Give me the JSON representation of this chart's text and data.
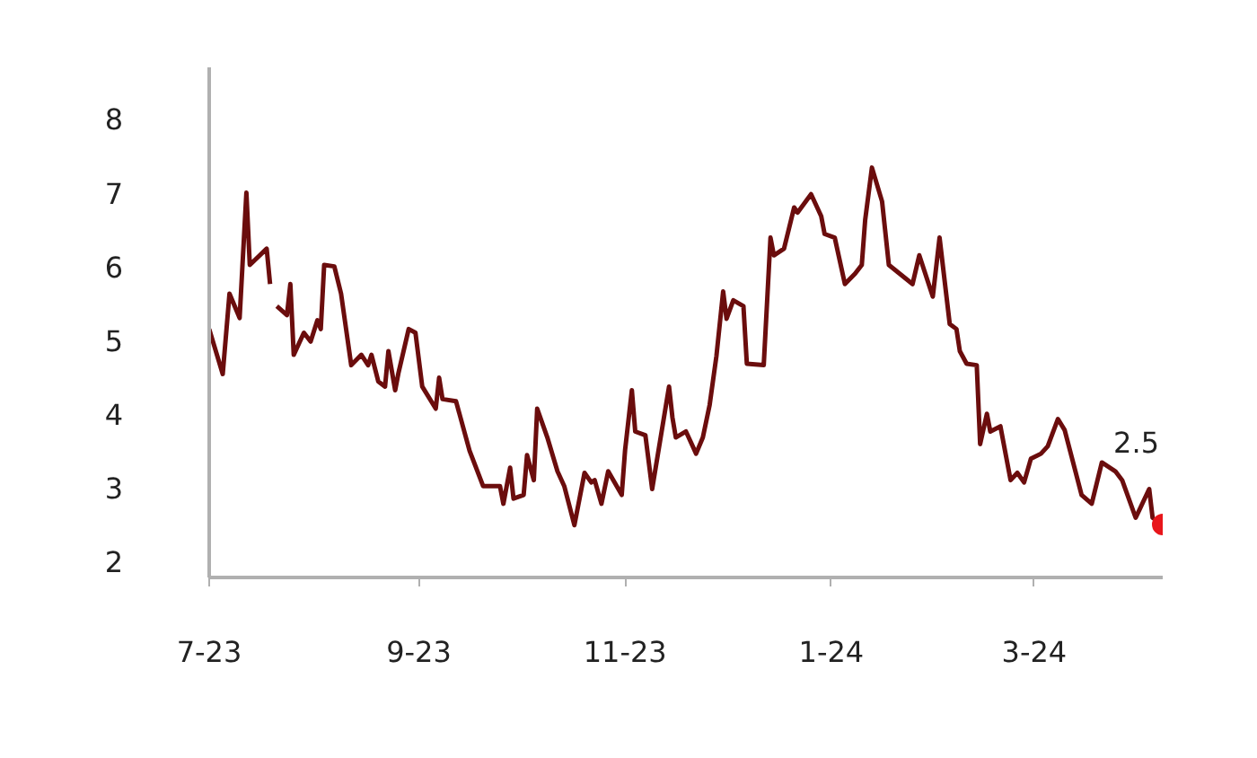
{
  "chart_data": {
    "type": "line",
    "xlim": [
      "2023-07-01",
      "2024-04-08"
    ],
    "ylim": [
      1.78,
      8.7
    ],
    "xticks": [
      {
        "value": "2023-07",
        "label": "7-23"
      },
      {
        "value": "2023-09",
        "label": "9-23"
      },
      {
        "value": "2023-11",
        "label": "11-23"
      },
      {
        "value": "2024-01",
        "label": "1-24"
      },
      {
        "value": "2024-03",
        "label": "3-24"
      }
    ],
    "yticks": [
      2,
      3,
      4,
      5,
      6,
      7,
      8
    ],
    "grid": false,
    "marker": "none",
    "line_style": "solid",
    "series": [
      {
        "color": "#6b0d0d",
        "x": [
          "2023-07-01",
          "2023-07-05",
          "2023-07-07",
          "2023-07-10",
          "2023-07-12",
          "2023-07-13",
          "2023-07-18",
          "2023-07-19",
          "2023-07-20",
          "2023-07-21",
          "2023-07-24",
          "2023-07-25",
          "2023-07-26",
          "2023-07-29",
          "2023-07-31",
          "2023-08-02",
          "2023-08-03",
          "2023-08-04",
          "2023-08-07",
          "2023-08-09",
          "2023-08-12",
          "2023-08-15",
          "2023-08-17",
          "2023-08-18",
          "2023-08-20",
          "2023-08-22",
          "2023-08-23",
          "2023-08-25",
          "2023-08-26",
          "2023-08-29",
          "2023-08-31",
          "2023-09-02",
          "2023-09-06",
          "2023-09-07",
          "2023-09-08",
          "2023-09-12",
          "2023-09-16",
          "2023-09-20",
          "2023-09-25",
          "2023-09-26",
          "2023-09-28",
          "2023-09-29",
          "2023-10-02",
          "2023-10-03",
          "2023-10-05",
          "2023-10-06",
          "2023-10-09",
          "2023-10-12",
          "2023-10-14",
          "2023-10-17",
          "2023-10-20",
          "2023-10-22",
          "2023-10-23",
          "2023-10-25",
          "2023-10-27",
          "2023-10-31",
          "2023-11-01",
          "2023-11-03",
          "2023-11-04",
          "2023-11-07",
          "2023-11-09",
          "2023-11-14",
          "2023-11-15",
          "2023-11-16",
          "2023-11-19",
          "2023-11-22",
          "2023-11-24",
          "2023-11-26",
          "2023-11-28",
          "2023-11-30",
          "2023-12-01",
          "2023-12-03",
          "2023-12-06",
          "2023-12-07",
          "2023-12-12",
          "2023-12-14",
          "2023-12-15",
          "2023-12-18",
          "2023-12-21",
          "2023-12-22",
          "2023-12-26",
          "2023-12-29",
          "2023-12-30",
          "2024-01-02",
          "2024-01-05",
          "2024-01-08",
          "2024-01-10",
          "2024-01-11",
          "2024-01-13",
          "2024-01-16",
          "2024-01-18",
          "2024-01-25",
          "2024-01-27",
          "2024-01-31",
          "2024-02-02",
          "2024-02-05",
          "2024-02-07",
          "2024-02-08",
          "2024-02-10",
          "2024-02-13",
          "2024-02-14",
          "2024-02-16",
          "2024-02-17",
          "2024-02-20",
          "2024-02-23",
          "2024-02-25",
          "2024-02-27",
          "2024-02-29",
          "2024-03-03",
          "2024-03-05",
          "2024-03-08",
          "2024-03-10",
          "2024-03-15",
          "2024-03-18",
          "2024-03-21",
          "2024-03-25",
          "2024-03-27",
          "2024-03-31",
          "2024-04-04",
          "2024-04-05",
          "2024-04-08"
        ],
        "values": [
          5.15,
          4.54,
          5.63,
          5.3,
          7.0,
          6.02,
          6.24,
          5.76,
          null,
          5.46,
          5.34,
          5.76,
          4.8,
          5.1,
          4.98,
          5.27,
          5.15,
          6.02,
          6.0,
          5.63,
          4.66,
          4.8,
          4.66,
          4.8,
          4.44,
          4.37,
          4.85,
          4.32,
          4.56,
          5.15,
          5.1,
          4.37,
          4.07,
          4.49,
          4.2,
          4.17,
          3.5,
          3.02,
          3.02,
          2.78,
          3.27,
          2.85,
          2.9,
          3.44,
          3.1,
          4.07,
          3.68,
          3.22,
          3.02,
          2.49,
          3.2,
          3.07,
          3.1,
          2.78,
          3.22,
          2.9,
          3.51,
          4.32,
          3.76,
          3.71,
          2.98,
          4.37,
          3.95,
          3.68,
          3.76,
          3.46,
          3.68,
          4.12,
          4.78,
          5.66,
          5.29,
          5.54,
          5.46,
          4.68,
          4.66,
          6.39,
          6.15,
          6.24,
          6.8,
          6.73,
          6.98,
          6.68,
          6.44,
          6.39,
          5.76,
          5.9,
          6.02,
          6.63,
          7.34,
          6.88,
          6.02,
          5.76,
          6.15,
          5.59,
          6.39,
          5.22,
          5.15,
          4.85,
          4.68,
          4.66,
          3.59,
          4.0,
          3.76,
          3.83,
          3.1,
          3.2,
          3.07,
          3.39,
          3.46,
          3.56,
          3.93,
          3.78,
          2.9,
          2.78,
          3.34,
          3.22,
          3.1,
          2.59,
          2.98,
          2.59,
          2.5
        ]
      },
      {
        "type": "scatter",
        "marker": "circle",
        "color": "#e8161b",
        "x": [
          "2024-04-08"
        ],
        "values": [
          2.5
        ]
      }
    ],
    "annotations": [
      {
        "text": "2.5",
        "x": "2024-04-08",
        "y": 2.5
      }
    ]
  }
}
